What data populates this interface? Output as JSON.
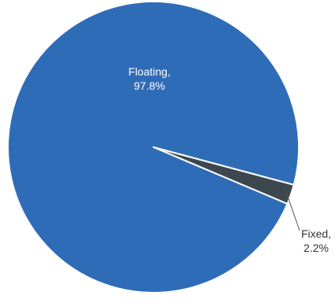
{
  "chart_data": {
    "type": "pie",
    "slices": [
      {
        "label": "Floating,",
        "value_label": "97.8%",
        "value": 97.8,
        "color": "#2f6cb8"
      },
      {
        "label": "Fixed,",
        "value_label": "2.2%",
        "value": 2.2,
        "color": "#3d474f"
      }
    ],
    "legend": "none",
    "label_placement": "floating inside, fixed outside with leader line"
  }
}
